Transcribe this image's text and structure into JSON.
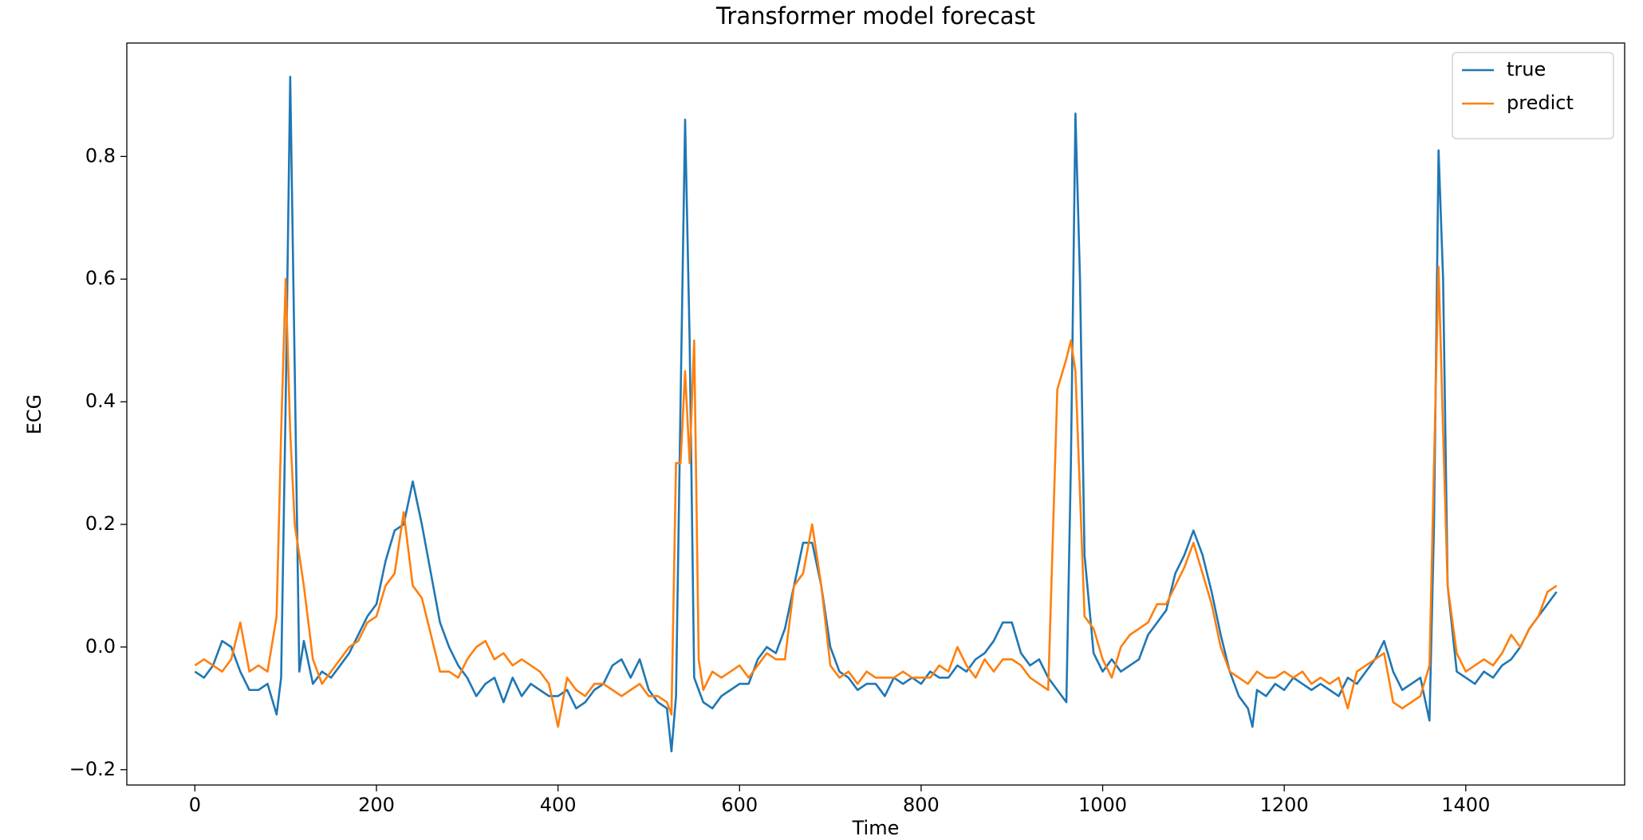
{
  "chart_data": {
    "type": "line",
    "title": "Transformer model forecast",
    "x_label": "Time",
    "y_label": "ECG",
    "x": [
      0,
      10,
      20,
      30,
      40,
      50,
      60,
      70,
      80,
      90,
      95,
      100,
      105,
      110,
      115,
      120,
      130,
      140,
      150,
      160,
      170,
      180,
      190,
      200,
      210,
      220,
      230,
      240,
      250,
      260,
      270,
      280,
      290,
      300,
      310,
      320,
      330,
      340,
      350,
      360,
      370,
      380,
      390,
      400,
      410,
      420,
      430,
      440,
      450,
      460,
      470,
      480,
      490,
      500,
      510,
      520,
      525,
      530,
      535,
      540,
      545,
      550,
      555,
      560,
      570,
      580,
      590,
      600,
      610,
      620,
      630,
      640,
      650,
      660,
      670,
      680,
      690,
      700,
      710,
      720,
      730,
      740,
      750,
      760,
      770,
      780,
      790,
      800,
      810,
      820,
      830,
      840,
      850,
      860,
      870,
      880,
      890,
      900,
      910,
      920,
      930,
      940,
      950,
      960,
      965,
      970,
      975,
      980,
      990,
      1000,
      1010,
      1020,
      1030,
      1040,
      1050,
      1060,
      1070,
      1080,
      1090,
      1100,
      1110,
      1120,
      1130,
      1140,
      1150,
      1160,
      1165,
      1170,
      1180,
      1190,
      1200,
      1210,
      1220,
      1230,
      1240,
      1250,
      1260,
      1270,
      1280,
      1290,
      1300,
      1310,
      1320,
      1330,
      1340,
      1350,
      1360,
      1365,
      1370,
      1375,
      1380,
      1390,
      1400,
      1410,
      1420,
      1430,
      1440,
      1450,
      1460,
      1470,
      1480,
      1490,
      1500
    ],
    "series": [
      {
        "name": "true",
        "color": "#1f77b4",
        "values": [
          -0.04,
          -0.05,
          -0.03,
          0.01,
          0.0,
          -0.04,
          -0.07,
          -0.07,
          -0.06,
          -0.11,
          -0.05,
          0.4,
          0.93,
          0.45,
          -0.04,
          0.01,
          -0.06,
          -0.04,
          -0.05,
          -0.03,
          -0.01,
          0.02,
          0.05,
          0.07,
          0.14,
          0.19,
          0.2,
          0.27,
          0.2,
          0.12,
          0.04,
          0.0,
          -0.03,
          -0.05,
          -0.08,
          -0.06,
          -0.05,
          -0.09,
          -0.05,
          -0.08,
          -0.06,
          -0.07,
          -0.08,
          -0.08,
          -0.07,
          -0.1,
          -0.09,
          -0.07,
          -0.06,
          -0.03,
          -0.02,
          -0.05,
          -0.02,
          -0.07,
          -0.09,
          -0.1,
          -0.17,
          -0.08,
          0.4,
          0.86,
          0.5,
          -0.05,
          -0.07,
          -0.09,
          -0.1,
          -0.08,
          -0.07,
          -0.06,
          -0.06,
          -0.02,
          0.0,
          -0.01,
          0.03,
          0.1,
          0.17,
          0.17,
          0.1,
          0.0,
          -0.04,
          -0.05,
          -0.07,
          -0.06,
          -0.06,
          -0.08,
          -0.05,
          -0.06,
          -0.05,
          -0.06,
          -0.04,
          -0.05,
          -0.05,
          -0.03,
          -0.04,
          -0.02,
          -0.01,
          0.01,
          0.04,
          0.04,
          -0.01,
          -0.03,
          -0.02,
          -0.05,
          -0.07,
          -0.09,
          0.3,
          0.87,
          0.6,
          0.15,
          -0.01,
          -0.04,
          -0.02,
          -0.04,
          -0.03,
          -0.02,
          0.02,
          0.04,
          0.06,
          0.12,
          0.15,
          0.19,
          0.15,
          0.09,
          0.02,
          -0.04,
          -0.08,
          -0.1,
          -0.13,
          -0.07,
          -0.08,
          -0.06,
          -0.07,
          -0.05,
          -0.06,
          -0.07,
          -0.06,
          -0.07,
          -0.08,
          -0.05,
          -0.06,
          -0.04,
          -0.02,
          0.01,
          -0.04,
          -0.07,
          -0.06,
          -0.05,
          -0.12,
          0.2,
          0.81,
          0.6,
          0.1,
          -0.04,
          -0.05,
          -0.06,
          -0.04,
          -0.05,
          -0.03,
          -0.02,
          0.0,
          0.03,
          0.05,
          0.07,
          0.09
        ]
      },
      {
        "name": "predict",
        "color": "#ff7f0e",
        "values": [
          -0.03,
          -0.02,
          -0.03,
          -0.04,
          -0.02,
          0.04,
          -0.04,
          -0.03,
          -0.04,
          0.05,
          0.35,
          0.6,
          0.35,
          0.2,
          0.15,
          0.1,
          -0.02,
          -0.06,
          -0.04,
          -0.02,
          0.0,
          0.01,
          0.04,
          0.05,
          0.1,
          0.12,
          0.22,
          0.1,
          0.08,
          0.02,
          -0.04,
          -0.04,
          -0.05,
          -0.02,
          0.0,
          0.01,
          -0.02,
          -0.01,
          -0.03,
          -0.02,
          -0.03,
          -0.04,
          -0.06,
          -0.13,
          -0.05,
          -0.07,
          -0.08,
          -0.06,
          -0.06,
          -0.07,
          -0.08,
          -0.07,
          -0.06,
          -0.08,
          -0.08,
          -0.09,
          -0.11,
          0.3,
          0.3,
          0.45,
          0.3,
          0.5,
          -0.02,
          -0.07,
          -0.04,
          -0.05,
          -0.04,
          -0.03,
          -0.05,
          -0.03,
          -0.01,
          -0.02,
          -0.02,
          0.1,
          0.12,
          0.2,
          0.1,
          -0.03,
          -0.05,
          -0.04,
          -0.06,
          -0.04,
          -0.05,
          -0.05,
          -0.05,
          -0.04,
          -0.05,
          -0.05,
          -0.05,
          -0.03,
          -0.04,
          0.0,
          -0.03,
          -0.05,
          -0.02,
          -0.04,
          -0.02,
          -0.02,
          -0.03,
          -0.05,
          -0.06,
          -0.07,
          0.42,
          0.47,
          0.5,
          0.45,
          0.25,
          0.05,
          0.03,
          -0.02,
          -0.05,
          0.0,
          0.02,
          0.03,
          0.04,
          0.07,
          0.07,
          0.1,
          0.13,
          0.17,
          0.12,
          0.07,
          0.0,
          -0.04,
          -0.05,
          -0.06,
          -0.05,
          -0.04,
          -0.05,
          -0.05,
          -0.04,
          -0.05,
          -0.04,
          -0.06,
          -0.05,
          -0.06,
          -0.05,
          -0.1,
          -0.04,
          -0.03,
          -0.02,
          -0.01,
          -0.09,
          -0.1,
          -0.09,
          -0.08,
          -0.03,
          0.3,
          0.62,
          0.35,
          0.1,
          -0.01,
          -0.04,
          -0.03,
          -0.02,
          -0.03,
          -0.01,
          0.02,
          0.0,
          0.03,
          0.05,
          0.09,
          0.1
        ]
      }
    ],
    "xlim": [
      -75,
      1575
    ],
    "ylim": [
      -0.225,
      0.985
    ],
    "xticks": [
      0,
      200,
      400,
      600,
      800,
      1000,
      1200,
      1400
    ],
    "yticks": [
      {
        "value": -0.2,
        "label": "−0.2"
      },
      {
        "value": 0,
        "label": "0.0"
      },
      {
        "value": 0.2,
        "label": "0.2"
      },
      {
        "value": 0.4,
        "label": "0.4"
      },
      {
        "value": 0.6,
        "label": "0.6"
      },
      {
        "value": 0.8,
        "label": "0.8"
      }
    ],
    "legend": "upper right"
  }
}
